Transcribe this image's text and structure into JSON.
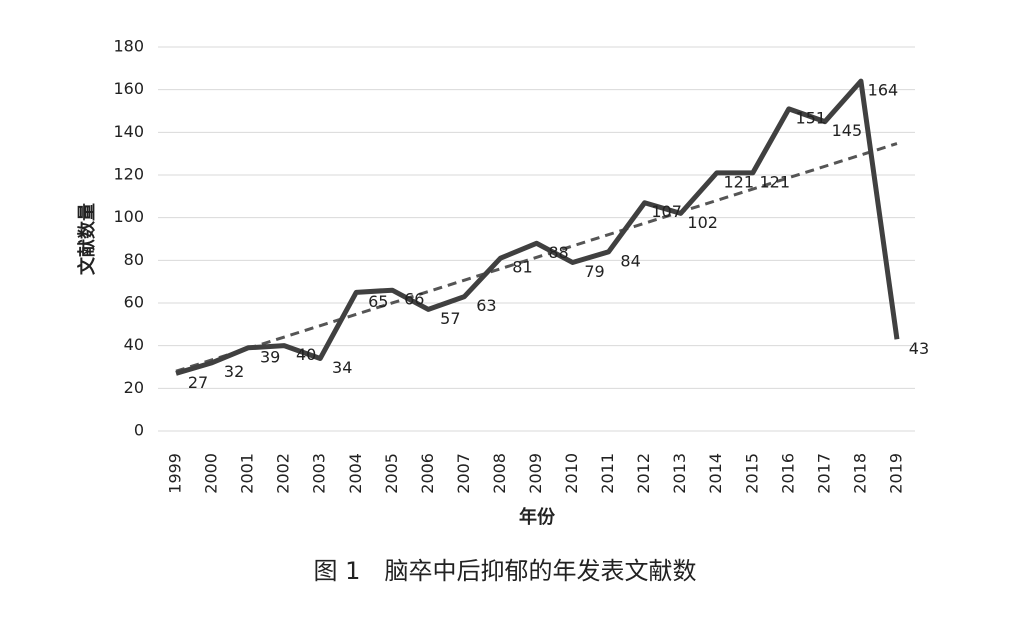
{
  "chart_data": {
    "type": "line",
    "title": "图 1　脑卒中后抑郁的年发表文献数",
    "x_label": "年份",
    "y_label": "文献数量",
    "categories": [
      "1999",
      "2000",
      "2001",
      "2002",
      "2003",
      "2004",
      "2005",
      "2006",
      "2007",
      "2008",
      "2009",
      "2010",
      "2011",
      "2012",
      "2013",
      "2014",
      "2015",
      "2016",
      "2017",
      "2018",
      "2019"
    ],
    "series": [
      {
        "name": "文献数量",
        "color": "#404040",
        "values": [
          27,
          32,
          39,
          40,
          34,
          65,
          66,
          57,
          63,
          81,
          88,
          79,
          84,
          107,
          102,
          121,
          121,
          151,
          145,
          164,
          43
        ]
      }
    ],
    "ylim": [
      0,
      180
    ],
    "yticks": [
      0,
      20,
      40,
      60,
      80,
      100,
      120,
      140,
      160,
      180
    ],
    "grid": true,
    "trendline": true,
    "data_labels": true
  }
}
